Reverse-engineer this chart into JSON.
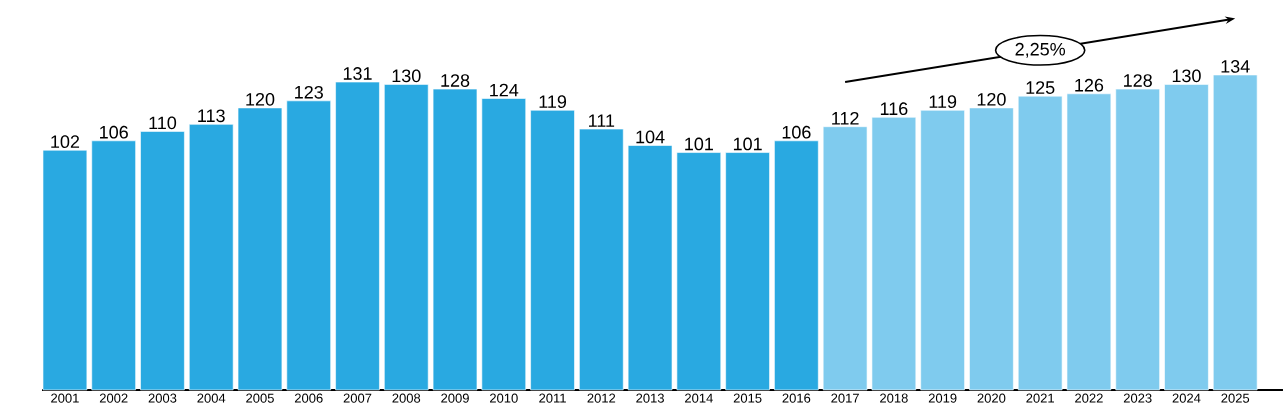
{
  "chart_data": {
    "type": "bar",
    "categories": [
      "2001",
      "2002",
      "2003",
      "2004",
      "2005",
      "2006",
      "2007",
      "2008",
      "2009",
      "2010",
      "2011",
      "2012",
      "2013",
      "2014",
      "2015",
      "2016",
      "2017",
      "2018",
      "2019",
      "2020",
      "2021",
      "2022",
      "2023",
      "2024",
      "2025"
    ],
    "series": [
      {
        "values": [
          102,
          106,
          110,
          113,
          120,
          123,
          131,
          130,
          128,
          124,
          119,
          111,
          104,
          101,
          101,
          106,
          112,
          116,
          119,
          120,
          125,
          126,
          128,
          130,
          134
        ],
        "colors": [
          "#29a9e1",
          "#29a9e1",
          "#29a9e1",
          "#29a9e1",
          "#29a9e1",
          "#29a9e1",
          "#29a9e1",
          "#29a9e1",
          "#29a9e1",
          "#29a9e1",
          "#29a9e1",
          "#29a9e1",
          "#29a9e1",
          "#29a9e1",
          "#29a9e1",
          "#29a9e1",
          "#7fcbee",
          "#7fcbee",
          "#7fcbee",
          "#7fcbee",
          "#7fcbee",
          "#7fcbee",
          "#7fcbee",
          "#7fcbee",
          "#7fcbee"
        ],
        "value_labels": [
          "102",
          "106",
          "110",
          "113",
          "120",
          "123",
          "131",
          "130",
          "128",
          "124",
          "119",
          "111",
          "104",
          "101",
          "101",
          "106",
          "112",
          "116",
          "119",
          "120",
          "125",
          "126",
          "128",
          "130",
          "134"
        ]
      },
      {
        "type": "line",
        "name": "2,25%",
        "color": "#000000",
        "values": [
          null,
          null,
          null,
          null,
          null,
          null,
          null,
          null,
          null,
          null,
          null,
          null,
          null,
          null,
          null,
          null,
          131,
          null,
          null,
          null,
          null,
          null,
          null,
          null,
          158
        ]
      }
    ]
  }
}
